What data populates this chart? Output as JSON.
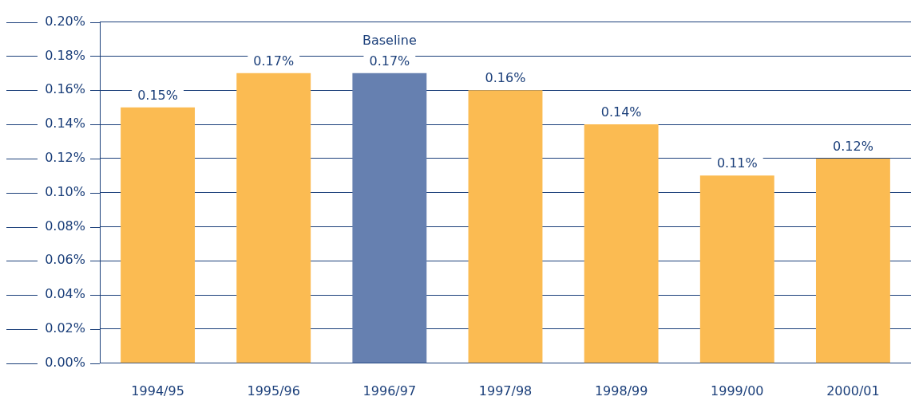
{
  "chart_data": {
    "type": "bar",
    "categories": [
      "1994/95",
      "1995/96",
      "1996/97",
      "1997/98",
      "1998/99",
      "1999/00",
      "2000/01"
    ],
    "values": [
      0.15,
      0.17,
      0.17,
      0.16,
      0.14,
      0.11,
      0.12
    ],
    "colors": [
      "#fbbb52",
      "#fbbb52",
      "#6680b0",
      "#fbbb52",
      "#fbbb52",
      "#fbbb52",
      "#fbbb52"
    ],
    "value_labels": [
      "0.15%",
      "0.17%",
      "0.17%",
      "0.16%",
      "0.14%",
      "0.11%",
      "0.12%"
    ],
    "annotations": [
      {
        "text": "Baseline",
        "x": "1996/97",
        "y": 0.17
      }
    ],
    "ylim": [
      0,
      0.2
    ],
    "yticks": [
      {
        "value": 0,
        "label": "0.00%"
      },
      {
        "value": 0.02,
        "label": "0.02%"
      },
      {
        "value": 0.04,
        "label": "0.04%"
      },
      {
        "value": 0.06,
        "label": "0.06%"
      },
      {
        "value": 0.08,
        "label": "0.08%"
      },
      {
        "value": 0.1,
        "label": "0.10%"
      },
      {
        "value": 0.12,
        "label": "0.12%"
      },
      {
        "value": 0.14,
        "label": "0.14%"
      },
      {
        "value": 0.16,
        "label": "0.16%"
      },
      {
        "value": 0.18,
        "label": "0.18%"
      },
      {
        "value": 0.2,
        "label": "0.20%"
      }
    ],
    "grid": "y",
    "legend": false
  }
}
